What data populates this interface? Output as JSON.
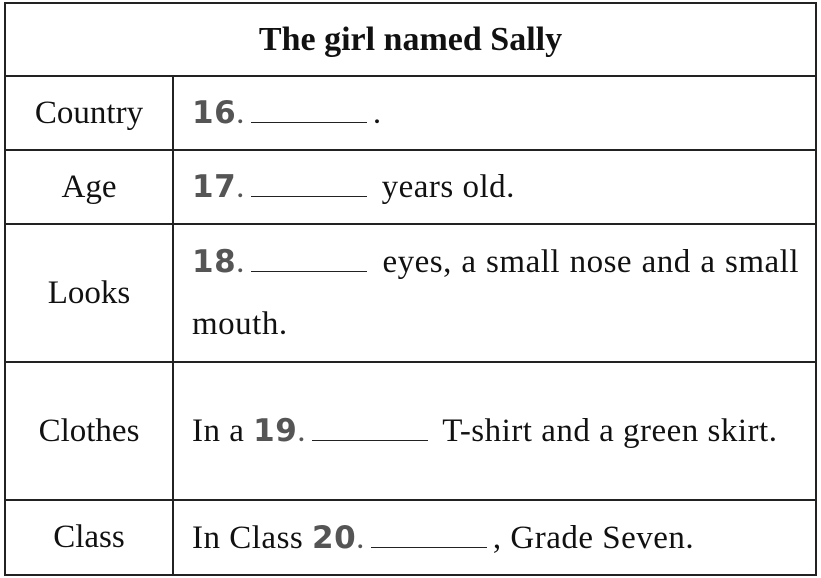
{
  "title": "The girl named Sally",
  "rows": [
    {
      "label": "Country",
      "num": "16",
      "before": "",
      "after": "."
    },
    {
      "label": "Age",
      "num": "17",
      "before": "",
      "after": "years old."
    },
    {
      "label": "Looks",
      "num": "18",
      "before": "",
      "after": "eyes, a small nose and a small mouth."
    },
    {
      "label": "Clothes",
      "num": "19",
      "before": "In a",
      "after": "T-shirt and a green skirt."
    },
    {
      "label": "Class",
      "num": "20",
      "before": "In Class",
      "after": ", Grade Seven."
    }
  ]
}
